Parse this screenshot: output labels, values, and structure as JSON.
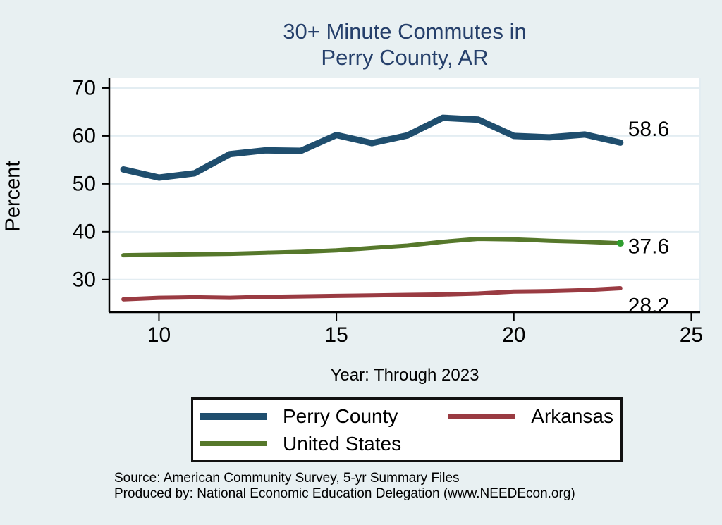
{
  "title": {
    "line1": "30+ Minute Commutes in",
    "line2": "Perry County, AR"
  },
  "ylabel": "Percent",
  "xlabel": "Year: Through 2023",
  "source": {
    "line1": "Source: American Community Survey, 5-yr Summary Files",
    "line2": "Produced by: National Economic Education Delegation (www.NEEDEcon.org)"
  },
  "colors": {
    "background": "#e8f0f2",
    "plot_background": "#ffffff",
    "gridline": "#e3edf2",
    "axis": "#000000",
    "title": "#26406b",
    "perry_county": "#1f4e6e",
    "united_states": "#56782b",
    "arkansas": "#9a3b42",
    "end_marker_green": "#2f9e2f",
    "text": "#000000"
  },
  "chart_data": {
    "type": "line",
    "title": "30+ Minute Commutes in Perry County, AR",
    "xlabel": "Year: Through 2023",
    "ylabel": "Percent",
    "x": [
      9,
      10,
      11,
      12,
      13,
      14,
      15,
      16,
      17,
      18,
      19,
      20,
      21,
      22,
      23
    ],
    "xticks": [
      10,
      15,
      20,
      25
    ],
    "yticks": [
      30,
      40,
      50,
      60,
      70
    ],
    "xlim": [
      8.6,
      25.25
    ],
    "ylim": [
      23.2,
      72.2
    ],
    "grid": "horizontal",
    "legend_position": "bottom",
    "series": [
      {
        "name": "Perry County",
        "color": "#1f4e6e",
        "line_width": 9,
        "values": [
          53.0,
          51.3,
          52.2,
          56.2,
          57.0,
          56.9,
          60.2,
          58.5,
          60.1,
          63.8,
          63.4,
          60.0,
          59.7,
          60.3,
          58.6
        ],
        "end_label": "58.6",
        "end_label_dy": -19,
        "end_marker": false
      },
      {
        "name": "United States",
        "color": "#56782b",
        "line_width": 6,
        "values": [
          35.1,
          35.2,
          35.3,
          35.4,
          35.6,
          35.8,
          36.1,
          36.6,
          37.1,
          37.9,
          38.5,
          38.4,
          38.1,
          37.9,
          37.6
        ],
        "end_label": "37.6",
        "end_label_dy": 5,
        "end_marker": true,
        "end_marker_color": "#2f9e2f"
      },
      {
        "name": "Arkansas",
        "color": "#9a3b42",
        "line_width": 6,
        "values": [
          25.9,
          26.2,
          26.3,
          26.2,
          26.4,
          26.5,
          26.6,
          26.7,
          26.8,
          26.9,
          27.1,
          27.5,
          27.6,
          27.8,
          28.2
        ],
        "end_label": "28.2",
        "end_label_dy": 25,
        "end_marker": false
      }
    ]
  },
  "legend": {
    "items": [
      {
        "label": "Perry County",
        "color": "#1f4e6e",
        "swatch_h": 10
      },
      {
        "label": "Arkansas",
        "color": "#9a3b42",
        "swatch_h": 6
      },
      {
        "label": "United States",
        "color": "#56782b",
        "swatch_h": 7
      }
    ]
  }
}
